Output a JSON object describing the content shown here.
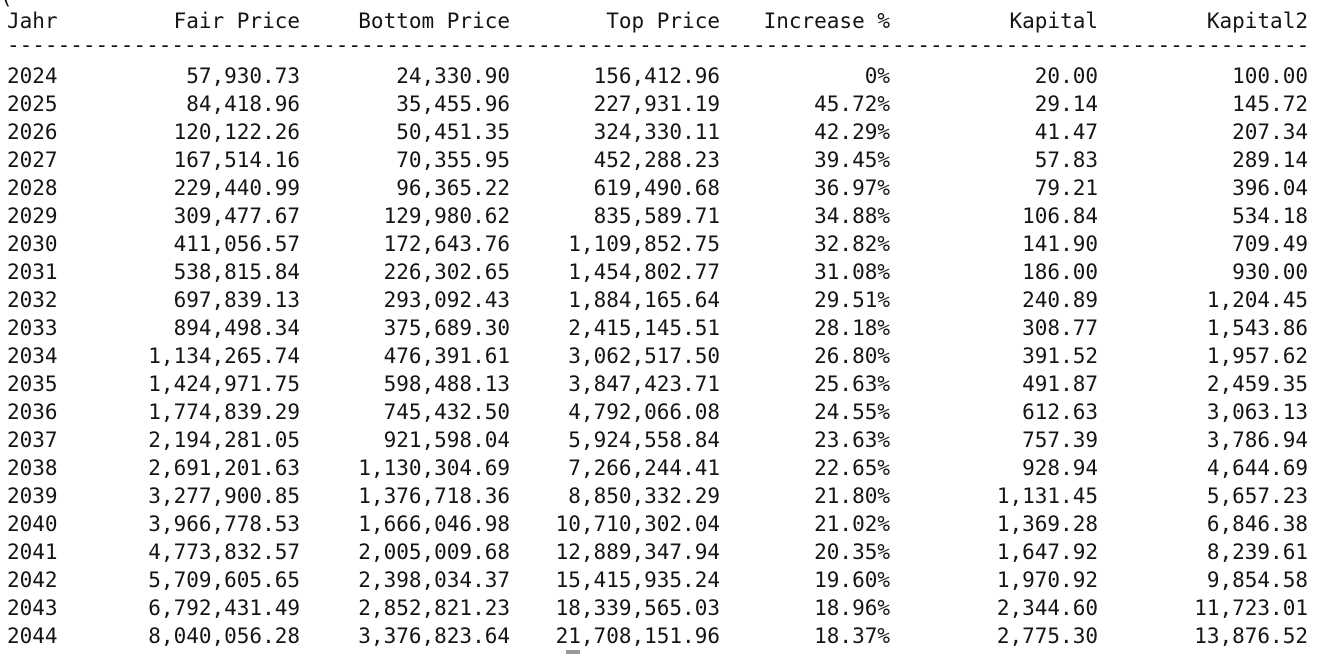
{
  "terminal": {
    "top_fragment": "(",
    "separator_char": "-",
    "headers": [
      "Jahr",
      "Fair Price",
      "Bottom Price",
      "Top Price",
      "Increase %",
      "Kapital",
      "Kapital2"
    ],
    "rows": [
      [
        "2024",
        "57,930.73",
        "24,330.90",
        "156,412.96",
        "0%",
        "20.00",
        "100.00"
      ],
      [
        "2025",
        "84,418.96",
        "35,455.96",
        "227,931.19",
        "45.72%",
        "29.14",
        "145.72"
      ],
      [
        "2026",
        "120,122.26",
        "50,451.35",
        "324,330.11",
        "42.29%",
        "41.47",
        "207.34"
      ],
      [
        "2027",
        "167,514.16",
        "70,355.95",
        "452,288.23",
        "39.45%",
        "57.83",
        "289.14"
      ],
      [
        "2028",
        "229,440.99",
        "96,365.22",
        "619,490.68",
        "36.97%",
        "79.21",
        "396.04"
      ],
      [
        "2029",
        "309,477.67",
        "129,980.62",
        "835,589.71",
        "34.88%",
        "106.84",
        "534.18"
      ],
      [
        "2030",
        "411,056.57",
        "172,643.76",
        "1,109,852.75",
        "32.82%",
        "141.90",
        "709.49"
      ],
      [
        "2031",
        "538,815.84",
        "226,302.65",
        "1,454,802.77",
        "31.08%",
        "186.00",
        "930.00"
      ],
      [
        "2032",
        "697,839.13",
        "293,092.43",
        "1,884,165.64",
        "29.51%",
        "240.89",
        "1,204.45"
      ],
      [
        "2033",
        "894,498.34",
        "375,689.30",
        "2,415,145.51",
        "28.18%",
        "308.77",
        "1,543.86"
      ],
      [
        "2034",
        "1,134,265.74",
        "476,391.61",
        "3,062,517.50",
        "26.80%",
        "391.52",
        "1,957.62"
      ],
      [
        "2035",
        "1,424,971.75",
        "598,488.13",
        "3,847,423.71",
        "25.63%",
        "491.87",
        "2,459.35"
      ],
      [
        "2036",
        "1,774,839.29",
        "745,432.50",
        "4,792,066.08",
        "24.55%",
        "612.63",
        "3,063.13"
      ],
      [
        "2037",
        "2,194,281.05",
        "921,598.04",
        "5,924,558.84",
        "23.63%",
        "757.39",
        "3,786.94"
      ],
      [
        "2038",
        "2,691,201.63",
        "1,130,304.69",
        "7,266,244.41",
        "22.65%",
        "928.94",
        "4,644.69"
      ],
      [
        "2039",
        "3,277,900.85",
        "1,376,718.36",
        "8,850,332.29",
        "21.80%",
        "1,131.45",
        "5,657.23"
      ],
      [
        "2040",
        "3,966,778.53",
        "1,666,046.98",
        "10,710,302.04",
        "21.02%",
        "1,369.28",
        "6,846.38"
      ],
      [
        "2041",
        "4,773,832.57",
        "2,005,009.68",
        "12,889,347.94",
        "20.35%",
        "1,647.92",
        "8,239.61"
      ],
      [
        "2042",
        "5,709,605.65",
        "2,398,034.37",
        "15,415,935.24",
        "19.60%",
        "1,970.92",
        "9,854.58"
      ],
      [
        "2043",
        "6,792,431.49",
        "2,852,821.23",
        "18,339,565.03",
        "18.96%",
        "2,344.60",
        "11,723.01"
      ],
      [
        "2044",
        "8,040,056.28",
        "3,376,823.64",
        "21,708,151.96",
        "18.37%",
        "2,775.30",
        "13,876.52"
      ]
    ]
  }
}
